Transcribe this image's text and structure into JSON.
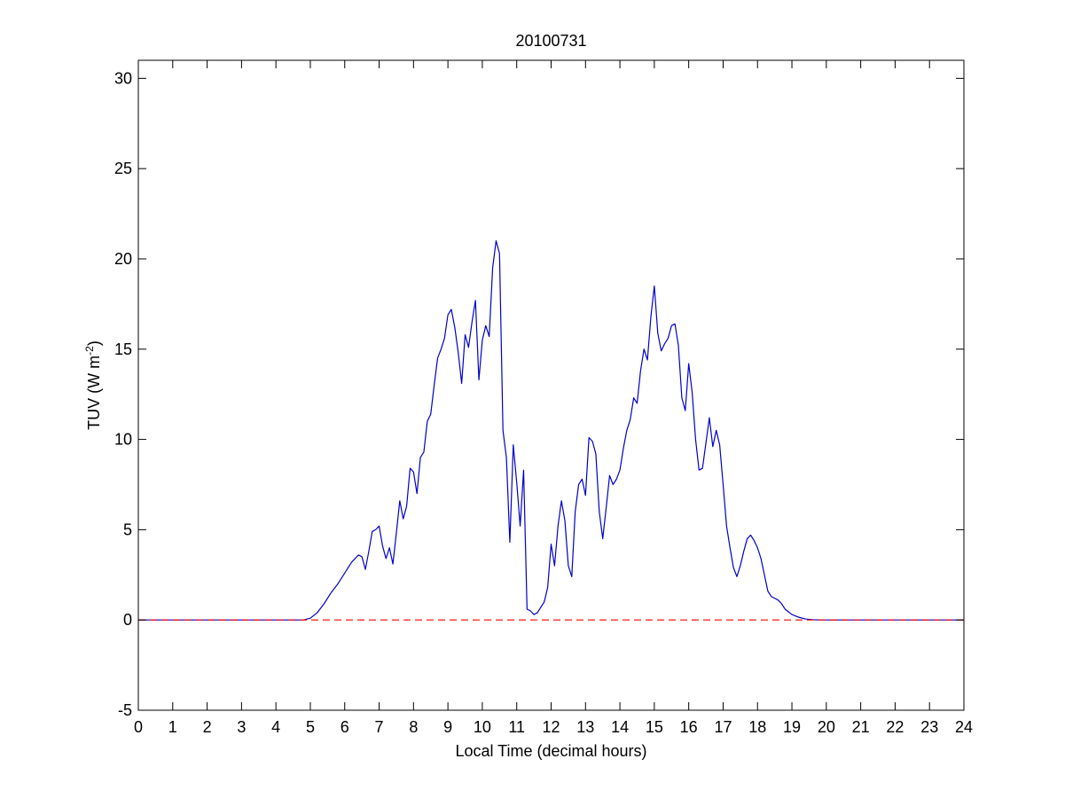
{
  "chart_data": {
    "type": "line",
    "title": "20100731",
    "xlabel": "Local Time (decimal hours)",
    "ylabel": {
      "prefix": "TUV (W m",
      "superscript": "-2",
      "suffix": ")"
    },
    "xlim": [
      0,
      24
    ],
    "ylim": [
      -5,
      31
    ],
    "xticks": [
      0,
      1,
      2,
      3,
      4,
      5,
      6,
      7,
      8,
      9,
      10,
      11,
      12,
      13,
      14,
      15,
      16,
      17,
      18,
      19,
      20,
      21,
      22,
      23,
      24
    ],
    "yticks": [
      -5,
      0,
      5,
      10,
      15,
      20,
      25,
      30
    ],
    "grid": false,
    "box": true,
    "series": [
      {
        "color": "#0000cc",
        "style": "solid",
        "x": [
          0,
          4.8,
          5.0,
          5.2,
          5.4,
          5.6,
          5.8,
          6.0,
          6.2,
          6.4,
          6.5,
          6.6,
          6.7,
          6.8,
          6.9,
          7.0,
          7.1,
          7.2,
          7.3,
          7.4,
          7.5,
          7.6,
          7.7,
          7.8,
          7.9,
          8.0,
          8.1,
          8.2,
          8.3,
          8.4,
          8.5,
          8.6,
          8.7,
          8.8,
          8.9,
          9.0,
          9.1,
          9.2,
          9.3,
          9.4,
          9.5,
          9.6,
          9.7,
          9.8,
          9.9,
          10.0,
          10.1,
          10.2,
          10.3,
          10.4,
          10.5,
          10.6,
          10.7,
          10.8,
          10.9,
          11.0,
          11.1,
          11.2,
          11.3,
          11.4,
          11.5,
          11.6,
          11.7,
          11.8,
          11.9,
          12.0,
          12.1,
          12.2,
          12.3,
          12.4,
          12.5,
          12.6,
          12.7,
          12.8,
          12.9,
          13.0,
          13.1,
          13.2,
          13.3,
          13.4,
          13.5,
          13.6,
          13.7,
          13.8,
          13.9,
          14.0,
          14.1,
          14.2,
          14.3,
          14.4,
          14.5,
          14.6,
          14.7,
          14.8,
          14.9,
          15.0,
          15.1,
          15.2,
          15.3,
          15.4,
          15.5,
          15.6,
          15.7,
          15.8,
          15.9,
          16.0,
          16.1,
          16.2,
          16.3,
          16.4,
          16.5,
          16.6,
          16.7,
          16.8,
          16.9,
          17.0,
          17.1,
          17.2,
          17.3,
          17.4,
          17.5,
          17.6,
          17.7,
          17.8,
          17.9,
          18.0,
          18.1,
          18.2,
          18.3,
          18.4,
          18.5,
          18.6,
          18.7,
          18.8,
          19.0,
          19.2,
          19.4,
          19.6,
          19.8,
          20.0,
          24
        ],
        "y": [
          0,
          0,
          0.1,
          0.4,
          0.9,
          1.5,
          2.0,
          2.6,
          3.2,
          3.6,
          3.5,
          2.8,
          3.8,
          4.9,
          5.0,
          5.2,
          4.1,
          3.4,
          4.0,
          3.1,
          4.8,
          6.6,
          5.6,
          6.3,
          8.4,
          8.2,
          7.0,
          9.0,
          9.3,
          11.0,
          11.4,
          13.0,
          14.5,
          15.0,
          15.6,
          16.9,
          17.2,
          16.2,
          14.8,
          13.1,
          15.8,
          15.1,
          16.5,
          17.7,
          13.3,
          15.5,
          16.3,
          15.7,
          19.5,
          21.0,
          20.3,
          10.5,
          9.0,
          4.3,
          9.7,
          7.6,
          5.2,
          8.3,
          0.6,
          0.5,
          0.3,
          0.4,
          0.7,
          1.0,
          1.8,
          4.2,
          3.0,
          5.2,
          6.6,
          5.5,
          3.0,
          2.4,
          6.0,
          7.5,
          7.8,
          6.9,
          10.1,
          9.9,
          9.2,
          6.0,
          4.5,
          6.2,
          8.0,
          7.5,
          7.8,
          8.3,
          9.5,
          10.5,
          11.1,
          12.3,
          12.0,
          13.8,
          15.0,
          14.4,
          16.8,
          18.5,
          15.9,
          14.9,
          15.3,
          15.6,
          16.3,
          16.4,
          15.2,
          12.3,
          11.6,
          14.2,
          12.6,
          10.0,
          8.3,
          8.4,
          9.8,
          11.2,
          9.6,
          10.5,
          9.7,
          7.5,
          5.2,
          4.0,
          2.9,
          2.4,
          3.0,
          3.8,
          4.5,
          4.7,
          4.4,
          4.0,
          3.4,
          2.5,
          1.6,
          1.3,
          1.2,
          1.1,
          0.9,
          0.6,
          0.3,
          0.15,
          0.05,
          0.02,
          0.0,
          0,
          0
        ]
      },
      {
        "color": "#ff0000",
        "style": "dashed",
        "x": [
          0,
          24
        ],
        "y": [
          0,
          0
        ]
      }
    ]
  }
}
